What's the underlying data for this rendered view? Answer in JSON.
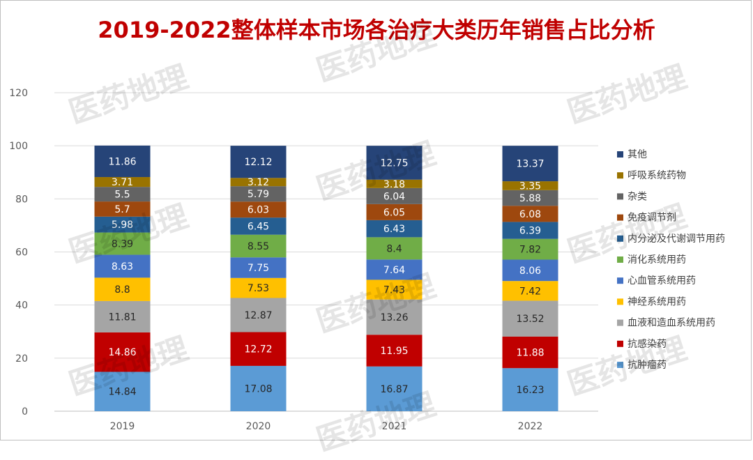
{
  "title": "2019-2022整体样本市场各治疗大类历年销售占比分析",
  "watermark": "医药地理",
  "chart_data": {
    "type": "bar",
    "stacked": true,
    "categories": [
      "2019",
      "2020",
      "2021",
      "2022"
    ],
    "ylim": [
      0,
      120
    ],
    "yticks": [
      0,
      20,
      40,
      60,
      80,
      100,
      120
    ],
    "grid": true,
    "legend_position": "right",
    "series": [
      {
        "name": "抗肿瘤药",
        "color": "#5b9bd5",
        "values": [
          14.84,
          17.08,
          16.87,
          16.23
        ]
      },
      {
        "name": "抗感染药",
        "color": "#c00000",
        "values": [
          14.86,
          12.72,
          11.95,
          11.88
        ]
      },
      {
        "name": "血液和造血系统用药",
        "color": "#a5a5a5",
        "values": [
          11.81,
          12.87,
          13.26,
          13.52
        ]
      },
      {
        "name": "神经系统用药",
        "color": "#ffc000",
        "values": [
          8.8,
          7.53,
          7.43,
          7.42
        ]
      },
      {
        "name": "心血管系统用药",
        "color": "#4472c4",
        "values": [
          8.63,
          7.75,
          7.64,
          8.06
        ]
      },
      {
        "name": "消化系统用药",
        "color": "#70ad47",
        "values": [
          8.39,
          8.55,
          8.4,
          7.82
        ]
      },
      {
        "name": "内分泌及代谢调节用药",
        "color": "#255e91",
        "values": [
          5.98,
          6.45,
          6.43,
          6.39
        ]
      },
      {
        "name": "免疫调节剂",
        "color": "#9e480e",
        "values": [
          5.7,
          6.03,
          6.05,
          6.08
        ]
      },
      {
        "name": "杂类",
        "color": "#636363",
        "values": [
          5.5,
          5.79,
          6.04,
          5.88
        ]
      },
      {
        "name": "呼吸系统药物",
        "color": "#997300",
        "values": [
          3.71,
          3.12,
          3.18,
          3.35
        ]
      },
      {
        "name": "其他",
        "color": "#264478",
        "values": [
          11.86,
          12.12,
          12.75,
          13.37
        ]
      }
    ]
  }
}
